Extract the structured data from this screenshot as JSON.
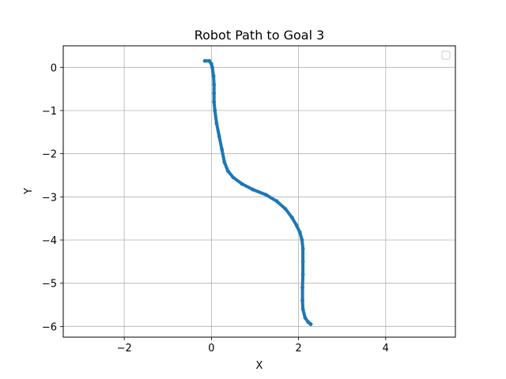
{
  "chart_data": {
    "type": "line",
    "title": "Robot Path to Goal 3",
    "xlabel": "X",
    "ylabel": "Y",
    "xlim": [
      -3.4,
      5.6
    ],
    "ylim": [
      -6.25,
      0.5
    ],
    "xticks": [
      -2,
      0,
      2,
      4
    ],
    "yticks": [
      0,
      -1,
      -2,
      -3,
      -4,
      -5,
      -6
    ],
    "xtick_labels": [
      "−2",
      "0",
      "2",
      "4"
    ],
    "ytick_labels": [
      "0",
      "−1",
      "−2",
      "−3",
      "−4",
      "−5",
      "−6"
    ],
    "grid": true,
    "legend": {
      "placement": "top-right",
      "entries": []
    },
    "series": [
      {
        "color": "#1f77b4",
        "marker": "dot",
        "x": [
          -0.15,
          -0.05,
          0.0,
          0.02,
          0.05,
          0.06,
          0.06,
          0.06,
          0.08,
          0.12,
          0.18,
          0.24,
          0.3,
          0.38,
          0.5,
          0.7,
          0.95,
          1.25,
          1.5,
          1.7,
          1.85,
          1.95,
          2.03,
          2.08,
          2.1,
          2.1,
          2.1,
          2.09,
          2.09,
          2.1,
          2.15,
          2.22,
          2.28
        ],
        "y": [
          0.15,
          0.15,
          0.08,
          0.0,
          -0.2,
          -0.4,
          -0.6,
          -0.8,
          -1.0,
          -1.3,
          -1.6,
          -1.9,
          -2.2,
          -2.4,
          -2.55,
          -2.7,
          -2.83,
          -2.95,
          -3.1,
          -3.28,
          -3.48,
          -3.65,
          -3.82,
          -4.0,
          -4.2,
          -4.5,
          -4.8,
          -5.1,
          -5.4,
          -5.6,
          -5.8,
          -5.9,
          -5.95
        ]
      }
    ]
  }
}
